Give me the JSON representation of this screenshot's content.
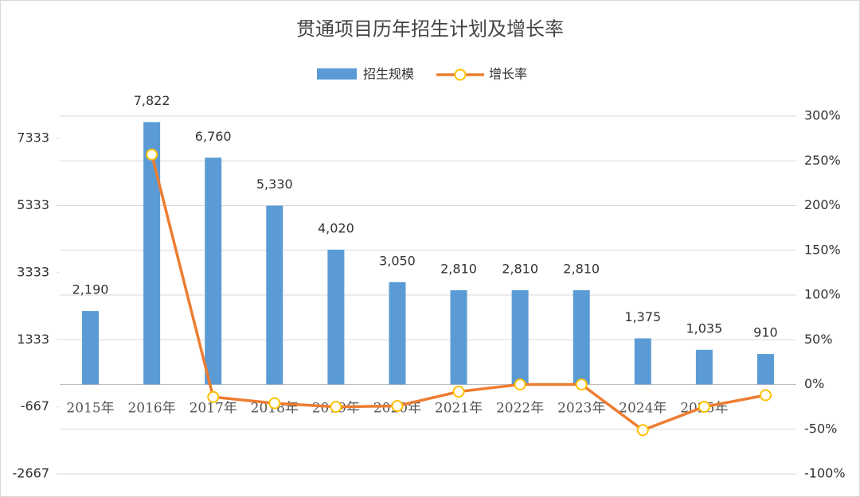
{
  "chart_data": {
    "type": "bar-line",
    "title": "贯通项目历年招生计划及增长率",
    "categories": [
      "2015年",
      "2016年",
      "2017年",
      "2018年",
      "2019年",
      "2020年",
      "2021年",
      "2022年",
      "2023年",
      "2024年",
      "2025年",
      null
    ],
    "series": [
      {
        "name": "招生规模",
        "type": "bar",
        "color": "#5b9bd5",
        "values": [
          2190,
          7822,
          6760,
          5330,
          4020,
          3050,
          2810,
          2810,
          2810,
          1375,
          1035,
          910
        ],
        "value_labels": [
          "2,190",
          "7,822",
          "6,760",
          "5,330",
          "4,020",
          "3,050",
          "2,810",
          "2,810",
          "2,810",
          "1,375",
          "1,035",
          "910"
        ]
      },
      {
        "name": "增长率",
        "type": "line",
        "axis": "y2",
        "color": "#ed7d31",
        "values": [
          null,
          257,
          -14,
          -21,
          -25,
          -24,
          -8,
          0,
          0,
          -51,
          -25,
          -12
        ]
      }
    ],
    "ylim": [
      -2667,
      8000
    ],
    "yticks": [
      -2667,
      -667,
      1333,
      3333,
      5333,
      7333
    ],
    "y2lim": [
      -100,
      300
    ],
    "y2ticks": [
      {
        "value": -100,
        "label": "-100%"
      },
      {
        "value": -50,
        "label": "-50%"
      },
      {
        "value": 0,
        "label": "0%"
      },
      {
        "value": 50,
        "label": "50%"
      },
      {
        "value": 100,
        "label": "100%"
      },
      {
        "value": 150,
        "label": "150%"
      },
      {
        "value": 200,
        "label": "200%"
      },
      {
        "value": 250,
        "label": "250%"
      },
      {
        "value": 300,
        "label": "300%"
      }
    ],
    "grid": true,
    "legend": "top"
  }
}
